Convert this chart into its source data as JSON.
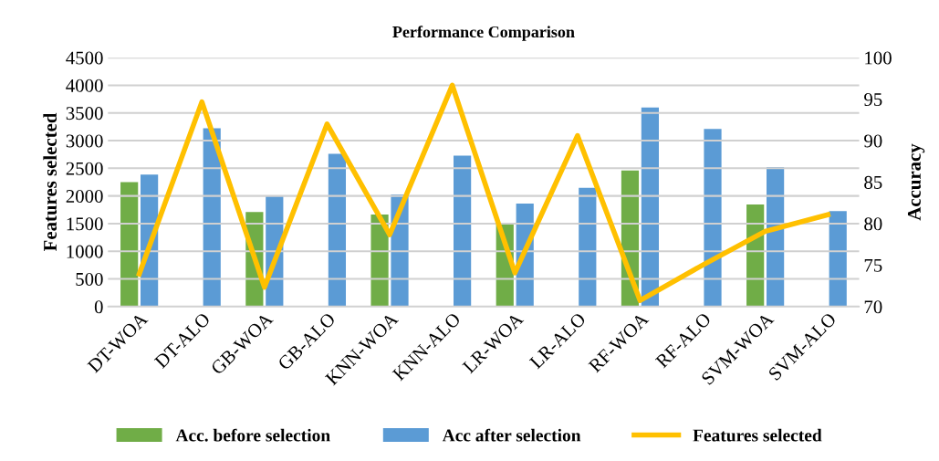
{
  "chart_data": {
    "type": "bar",
    "title": "Performance Comparison",
    "ylabel": "Features selected",
    "y2label": "Accuracy",
    "categories": [
      "DT-WOA",
      "DT-ALO",
      "GB-WOA",
      "GB-ALO",
      "KNN-WOA",
      "KNN-ALO",
      "LR-WOA",
      "LR-ALO",
      "RF-WOA",
      "RF-ALO",
      "SVM-WOA",
      "SVM-ALO"
    ],
    "series": [
      {
        "name": "Acc. before selection",
        "color": "#70ad47",
        "axis": "y2",
        "values": [
          85.0,
          null,
          81.4,
          null,
          81.1,
          null,
          80.0,
          null,
          86.4,
          null,
          82.3,
          null
        ]
      },
      {
        "name": "Acc after selection",
        "color": "#5b9bd5",
        "axis": "y2",
        "values": [
          85.9,
          91.5,
          83.3,
          88.4,
          83.5,
          88.2,
          82.4,
          84.3,
          94.0,
          91.4,
          86.8,
          81.5
        ]
      },
      {
        "name": "Features selected",
        "color": "#ffc000",
        "type": "line",
        "axis": "y",
        "values": [
          590,
          3700,
          350,
          3300,
          1300,
          4000,
          610,
          3090,
          110,
          750,
          1360,
          1660
        ]
      }
    ],
    "ylim": [
      0,
      4500
    ],
    "yticks": [
      0,
      500,
      1000,
      1500,
      2000,
      2500,
      3000,
      3500,
      4000,
      4500
    ],
    "y2lim": [
      70,
      100
    ],
    "y2ticks": [
      70,
      75,
      80,
      85,
      90,
      95,
      100
    ],
    "grid": "y",
    "legend": "bottom",
    "marker": "none",
    "line_style": "solid"
  }
}
